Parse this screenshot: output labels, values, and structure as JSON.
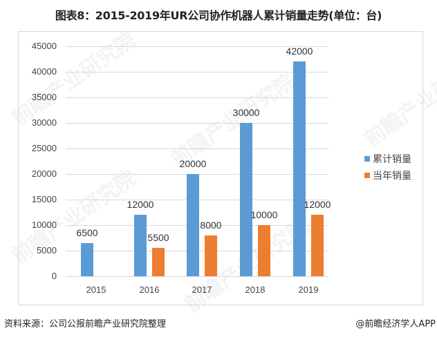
{
  "title": "图表8：2015-2019年UR公司协作机器人累计销量走势(单位：台)",
  "chart_data": {
    "type": "bar",
    "title": "图表8：2015-2019年UR公司协作机器人累计销量走势(单位：台)",
    "xlabel": "",
    "ylabel": "",
    "categories": [
      "2015",
      "2016",
      "2017",
      "2018",
      "2019"
    ],
    "series": [
      {
        "name": "累计销量",
        "color": "#5b9bd5",
        "values": [
          6500,
          12000,
          20000,
          30000,
          42000
        ]
      },
      {
        "name": "当年销量",
        "color": "#ed7d31",
        "values": [
          null,
          5500,
          8000,
          10000,
          12000
        ]
      }
    ],
    "ylim": [
      0,
      45000
    ],
    "yticks": [
      "0",
      "5000",
      "10000",
      "15000",
      "20000",
      "25000",
      "30000",
      "35000",
      "40000",
      "45000"
    ],
    "grid": true,
    "legend_position": "right",
    "data_labels": true
  },
  "legend": [
    {
      "label": "累计销量",
      "color": "#5b9bd5"
    },
    {
      "label": "当年销量",
      "color": "#ed7d31"
    }
  ],
  "data_labels": {
    "cumulative": [
      "6500",
      "12000",
      "20000",
      "30000",
      "42000"
    ],
    "annual": [
      "",
      "5500",
      "8000",
      "10000",
      "12000"
    ]
  },
  "footer": {
    "source": "资料来源：公司公报前瞻产业研究院整理",
    "credit": "@前瞻经济学人APP"
  },
  "watermark": "前瞻产业研究院"
}
